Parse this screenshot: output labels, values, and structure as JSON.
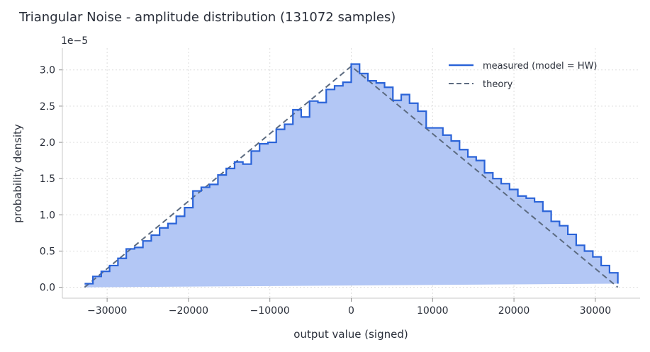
{
  "chart_data": {
    "type": "area",
    "title": "Triangular Noise - amplitude distribution (131072 samples)",
    "xlabel": "output value (signed)",
    "ylabel": "probability density",
    "y_offset_label": "1e−5",
    "xlim": [
      -35500,
      35500
    ],
    "ylim": [
      -0.15,
      3.3
    ],
    "y_scale_note": "values in units of 1e-5",
    "xticks": [
      -30000,
      -20000,
      -10000,
      0,
      10000,
      20000,
      30000
    ],
    "xtick_labels": [
      "−30000",
      "−20000",
      "−10000",
      "0",
      "10000",
      "20000",
      "30000"
    ],
    "yticks": [
      0.0,
      0.5,
      1.0,
      1.5,
      2.0,
      2.5,
      3.0
    ],
    "ytick_labels": [
      "0.0",
      "0.5",
      "1.0",
      "1.5",
      "2.0",
      "2.5",
      "3.0"
    ],
    "grid": true,
    "legend_position": "top-right",
    "colors": {
      "measured_line": "#2a63d8",
      "measured_fill": "#b3c7f5",
      "theory_line": "#5c6b80"
    },
    "series": [
      {
        "name": "measured (model = HW)",
        "style": "step",
        "bin_edges": [
          -32768,
          -31744,
          -30720,
          -29696,
          -28672,
          -27648,
          -26624,
          -25600,
          -24576,
          -23552,
          -22528,
          -21504,
          -20480,
          -19456,
          -18432,
          -17408,
          -16384,
          -15360,
          -14336,
          -13312,
          -12288,
          -11264,
          -10240,
          -9216,
          -8192,
          -7168,
          -6144,
          -5120,
          -4096,
          -3072,
          -2048,
          -1024,
          0,
          1024,
          2048,
          3072,
          4096,
          5120,
          6144,
          7168,
          8192,
          9216,
          10240,
          11264,
          12288,
          13312,
          14336,
          15360,
          16384,
          17408,
          18432,
          19456,
          20480,
          21504,
          22528,
          23552,
          24576,
          25600,
          26624,
          27648,
          28672,
          29696,
          30720,
          31744,
          32768
        ],
        "values": [
          0.05,
          0.15,
          0.22,
          0.3,
          0.4,
          0.53,
          0.55,
          0.64,
          0.72,
          0.82,
          0.88,
          0.98,
          1.1,
          1.33,
          1.38,
          1.42,
          1.55,
          1.64,
          1.73,
          1.7,
          1.88,
          1.98,
          2.0,
          2.18,
          2.25,
          2.45,
          2.35,
          2.57,
          2.55,
          2.73,
          2.78,
          2.83,
          3.08,
          2.95,
          2.85,
          2.82,
          2.76,
          2.58,
          2.66,
          2.54,
          2.43,
          2.2,
          2.2,
          2.1,
          2.02,
          1.9,
          1.8,
          1.75,
          1.58,
          1.5,
          1.43,
          1.35,
          1.26,
          1.23,
          1.18,
          1.05,
          0.91,
          0.85,
          0.73,
          0.58,
          0.5,
          0.42,
          0.3,
          0.2,
          0.05
        ]
      },
      {
        "name": "theory",
        "style": "dashed",
        "x": [
          -32768,
          0,
          32768
        ],
        "values": [
          0.0,
          3.05,
          0.0
        ]
      }
    ]
  }
}
